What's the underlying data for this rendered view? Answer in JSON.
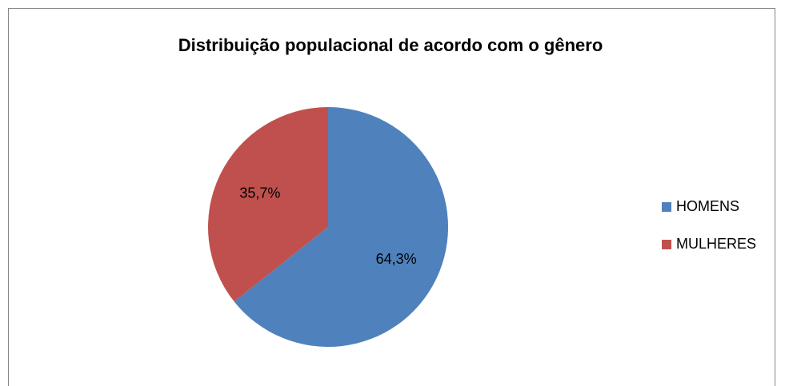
{
  "chart_data": {
    "type": "pie",
    "title": "Distribuição populacional de acordo com o gênero",
    "categories": [
      "HOMENS",
      "MULHERES"
    ],
    "values": [
      64.3,
      35.7
    ],
    "value_labels": [
      "64,3%",
      "35,7%"
    ],
    "colors": [
      "#4f81bd",
      "#c0504d"
    ],
    "legend": "right"
  }
}
